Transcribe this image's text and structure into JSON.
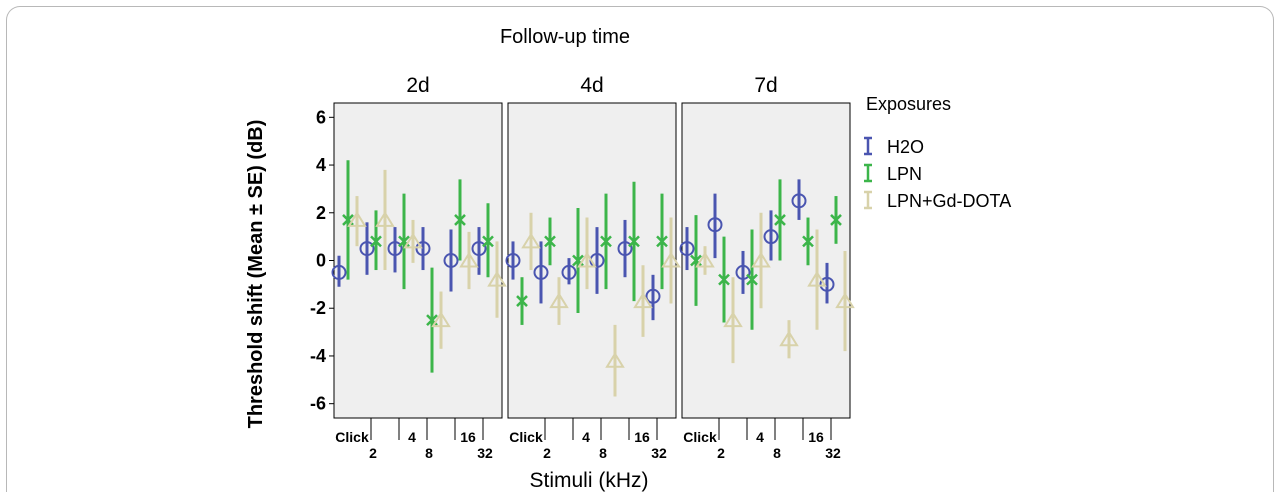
{
  "chart_data": {
    "type": "scatter",
    "facet_title": "Follow-up time",
    "facets": [
      "2d",
      "4d",
      "7d"
    ],
    "ylabel": "Threshold shift (Mean ± SE) (dB)",
    "xlabel": "Stimuli (kHz)",
    "ylim": [
      -6.6,
      6.6
    ],
    "yticks": [
      -6,
      -4,
      -2,
      0,
      2,
      4,
      6
    ],
    "categories": [
      "Click",
      "2",
      "4",
      "8",
      "16",
      "32"
    ],
    "grid": false,
    "legend": {
      "title": "Exposures",
      "position": "right"
    },
    "series": [
      {
        "name": "H2O",
        "color": "#4a55b0",
        "marker": "circle",
        "panels": [
          {
            "mean": [
              -0.5,
              0.5,
              0.5,
              0.5,
              0.0,
              0.5
            ],
            "lower": [
              -1.1,
              -0.6,
              -0.5,
              -0.4,
              -1.3,
              -0.6
            ],
            "upper": [
              0.2,
              1.6,
              1.4,
              1.4,
              1.3,
              1.4
            ]
          },
          {
            "mean": [
              0.0,
              -0.5,
              -0.5,
              0.0,
              0.5,
              -1.5
            ],
            "lower": [
              -0.8,
              -1.8,
              -1.0,
              -1.4,
              -0.7,
              -2.5
            ],
            "upper": [
              0.8,
              0.8,
              0.1,
              1.4,
              1.7,
              -0.6
            ]
          },
          {
            "mean": [
              0.5,
              1.5,
              -0.5,
              1.0,
              2.5,
              -1.0
            ],
            "lower": [
              -0.4,
              0.1,
              -1.4,
              0.0,
              1.7,
              -1.8
            ],
            "upper": [
              1.4,
              2.8,
              0.4,
              2.1,
              3.4,
              -0.1
            ]
          }
        ]
      },
      {
        "name": "LPN",
        "color": "#3cb54a",
        "marker": "x",
        "panels": [
          {
            "mean": [
              1.7,
              0.8,
              0.8,
              -2.5,
              1.7,
              0.8
            ],
            "lower": [
              -0.8,
              -0.4,
              -1.2,
              -4.7,
              0.0,
              -0.7
            ],
            "upper": [
              4.2,
              2.1,
              2.8,
              -0.3,
              3.4,
              2.4
            ]
          },
          {
            "mean": [
              -1.7,
              0.8,
              0.0,
              0.8,
              0.8,
              0.8
            ],
            "lower": [
              -2.7,
              -0.2,
              -2.2,
              -1.2,
              -1.7,
              -1.2
            ],
            "upper": [
              -0.7,
              1.8,
              2.2,
              2.8,
              3.3,
              2.8
            ]
          },
          {
            "mean": [
              0.0,
              -0.8,
              -0.8,
              1.7,
              0.8,
              1.7
            ],
            "lower": [
              -1.9,
              -2.6,
              -2.9,
              0.0,
              -0.2,
              0.7
            ],
            "upper": [
              1.9,
              1.0,
              1.3,
              3.4,
              1.8,
              2.7
            ]
          }
        ]
      },
      {
        "name": "LPN+Gd-DOTA",
        "color": "#d8d2aa",
        "marker": "triangle",
        "panels": [
          {
            "mean": [
              1.7,
              1.7,
              0.8,
              -2.5,
              0.0,
              -0.8
            ],
            "lower": [
              0.6,
              -0.4,
              -0.1,
              -3.7,
              -1.2,
              -2.4
            ],
            "upper": [
              2.7,
              3.8,
              1.7,
              -1.3,
              1.2,
              0.8
            ]
          },
          {
            "mean": [
              0.8,
              -1.7,
              0.0,
              -4.2,
              -1.7,
              0.0
            ],
            "lower": [
              -0.4,
              -2.7,
              -1.2,
              -5.7,
              -3.2,
              -1.8
            ],
            "upper": [
              2.0,
              -0.7,
              1.8,
              -2.7,
              -0.2,
              1.8
            ]
          },
          {
            "mean": [
              0.0,
              -2.5,
              0.0,
              -3.3,
              -0.8,
              -1.7
            ],
            "lower": [
              -0.6,
              -4.3,
              -2.0,
              -4.1,
              -2.9,
              -3.8
            ],
            "upper": [
              0.6,
              -0.7,
              2.0,
              -2.5,
              1.3,
              0.4
            ]
          }
        ]
      }
    ]
  }
}
